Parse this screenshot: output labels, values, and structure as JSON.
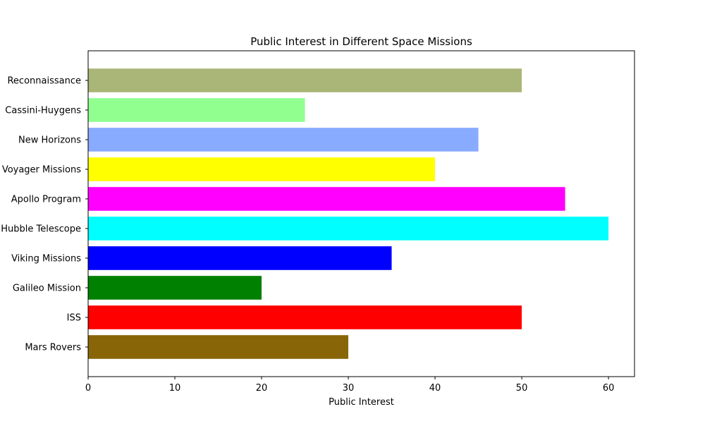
{
  "chart_data": {
    "type": "bar",
    "orientation": "horizontal",
    "title": "Public Interest in Different Space Missions",
    "xlabel": "Public Interest",
    "ylabel": "",
    "xlim": [
      0,
      63
    ],
    "xticks": [
      0,
      10,
      20,
      30,
      40,
      50,
      60
    ],
    "grid": false,
    "categories": [
      "Mars Rovers",
      "ISS",
      "Galileo Mission",
      "Viking Missions",
      "Hubble Telescope",
      "Apollo Program",
      "Voyager Missions",
      "New Horizons",
      "Cassini-Huygens",
      "Reconnaissance"
    ],
    "values": [
      30,
      50,
      20,
      35,
      60,
      55,
      40,
      45,
      25,
      50
    ],
    "colors": [
      "#886608",
      "#ff0000",
      "#008000",
      "#0000ff",
      "#00ffff",
      "#ff00ff",
      "#ffff00",
      "#88aaff",
      "#90ff90",
      "#aab578"
    ]
  }
}
